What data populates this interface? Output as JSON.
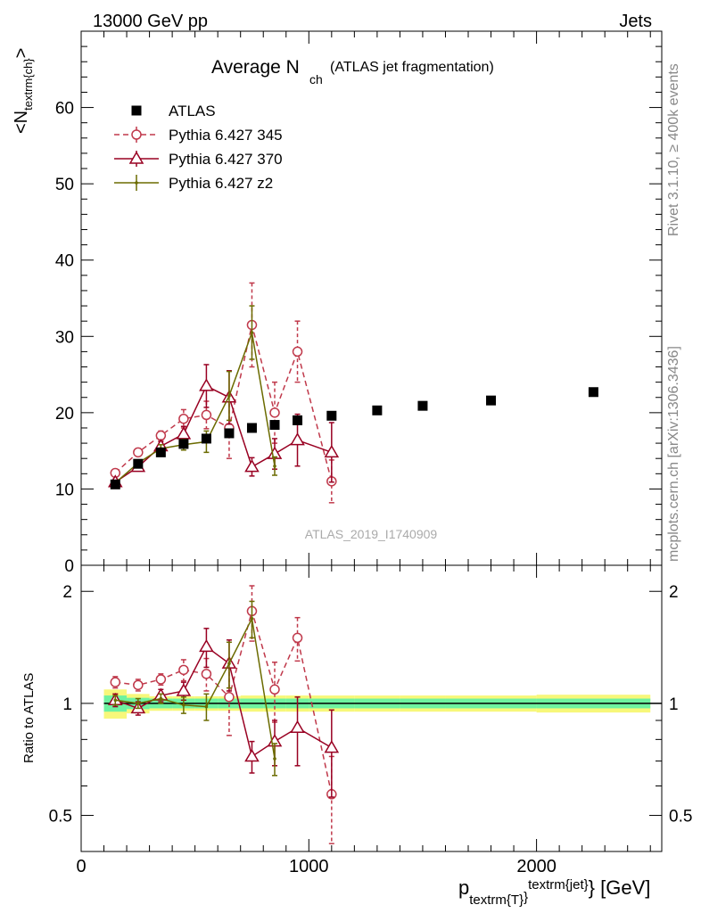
{
  "header": {
    "left": "13000 GeV pp",
    "right": "Jets"
  },
  "side_labels": {
    "rivet": "Rivet 3.1.10, ≥ 400k events",
    "mcplots": "mcplots.cern.ch [arXiv:1306.3436]"
  },
  "colors": {
    "atlas": "#000000",
    "p345": "#c0394b",
    "p370": "#990022",
    "pz2": "#6b6b00",
    "band_inner": "#6ef2a0",
    "band_outer": "#f7f77a"
  },
  "chart_data": [
    {
      "type": "scatter",
      "title_main": "Average N",
      "title_sub": "ch",
      "title_rest": "(ATLAS jet fragmentation)",
      "ylabel": "<N",
      "ylabel_sub": "textrm{ch}",
      "ylabel_end": ">",
      "watermark": "ATLAS_2019_I1740909",
      "xlim": [
        0,
        2550
      ],
      "ylim": [
        0,
        70
      ],
      "yticks": [
        0,
        10,
        20,
        30,
        40,
        50,
        60
      ],
      "legend_position": "top-left",
      "series": [
        {
          "name": "ATLAS",
          "style": "atlas",
          "x": [
            150,
            250,
            350,
            450,
            550,
            650,
            750,
            850,
            950,
            1100,
            1300,
            1500,
            1800,
            2250
          ],
          "y": [
            10.6,
            13.3,
            14.8,
            15.9,
            16.6,
            17.3,
            18.0,
            18.4,
            19.0,
            19.6,
            20.3,
            20.9,
            21.6,
            22.7
          ]
        },
        {
          "name": "Pythia 6.427 345",
          "style": "p345",
          "x": [
            150,
            250,
            350,
            450,
            550,
            650,
            750,
            850,
            950,
            1100
          ],
          "y": [
            12.1,
            14.8,
            17.0,
            19.2,
            19.7,
            18.0,
            31.5,
            20.0,
            28.0,
            11.0
          ],
          "err": [
            0.4,
            0.5,
            0.6,
            1.2,
            1.8,
            4.0,
            5.5,
            4.0,
            4.0,
            2.8
          ]
        },
        {
          "name": "Pythia 6.427 370",
          "style": "p370",
          "x": [
            150,
            250,
            350,
            450,
            550,
            650,
            750,
            850,
            950,
            1100
          ],
          "y": [
            10.9,
            12.9,
            15.6,
            17.2,
            23.5,
            22.0,
            12.9,
            14.6,
            16.4,
            14.8
          ],
          "err": [
            0.4,
            0.5,
            0.6,
            1.0,
            2.8,
            3.5,
            1.2,
            2.0,
            3.4,
            3.9
          ],
          "draw_to": 7
        },
        {
          "name": "Pythia 6.427 z2",
          "style": "pz2",
          "x": [
            150,
            250,
            350,
            450,
            550,
            650,
            750,
            850
          ],
          "y": [
            10.8,
            13.4,
            15.3,
            15.8,
            16.2,
            22.2,
            30.5,
            13.0
          ],
          "err": [
            0.3,
            0.4,
            0.5,
            0.7,
            1.4,
            3.2,
            3.5,
            1.2
          ]
        }
      ]
    },
    {
      "type": "scatter",
      "ylabel": "Ratio to ATLAS",
      "xlabel": "p",
      "xlabel_sub": "textrm{T}",
      "xlabel_brace": "}",
      "xlabel_sup": "textrm{jet}",
      "xlabel_end": "} [GeV]",
      "xlim": [
        0,
        2550
      ],
      "ylim": [
        0.4,
        2.35
      ],
      "yscale": "log",
      "yticks": [
        0.5,
        1,
        2
      ],
      "ytick_labels": [
        "0.5",
        "1",
        "2"
      ],
      "xticks": [
        0,
        1000,
        2000
      ],
      "xtick_labels": [
        "0",
        "1000",
        "2000"
      ],
      "band": {
        "x": [
          100,
          200,
          300,
          400,
          500,
          600,
          700,
          800,
          900,
          1000,
          1200,
          1400,
          1600,
          2000,
          2500
        ],
        "inner": [
          0.05,
          0.035,
          0.03,
          0.03,
          0.03,
          0.03,
          0.03,
          0.03,
          0.03,
          0.03,
          0.03,
          0.03,
          0.03,
          0.03
        ],
        "outer": [
          0.09,
          0.06,
          0.045,
          0.045,
          0.045,
          0.045,
          0.05,
          0.05,
          0.05,
          0.05,
          0.05,
          0.05,
          0.05,
          0.055
        ]
      },
      "series": [
        {
          "name": "Pythia 6.427 345",
          "style": "p345",
          "x": [
            150,
            250,
            350,
            450,
            550,
            650,
            750,
            850,
            950,
            1100
          ],
          "y": [
            1.14,
            1.12,
            1.16,
            1.23,
            1.2,
            1.04,
            1.77,
            1.09,
            1.5,
            0.57
          ],
          "err": [
            0.04,
            0.04,
            0.04,
            0.08,
            0.12,
            0.22,
            0.3,
            0.2,
            0.2,
            0.15
          ]
        },
        {
          "name": "Pythia 6.427 370",
          "style": "p370",
          "x": [
            150,
            250,
            350,
            450,
            550,
            650,
            750,
            850,
            950,
            1100
          ],
          "y": [
            1.02,
            0.97,
            1.05,
            1.08,
            1.42,
            1.28,
            0.72,
            0.79,
            0.86,
            0.76
          ],
          "err": [
            0.04,
            0.04,
            0.04,
            0.06,
            0.17,
            0.2,
            0.07,
            0.11,
            0.18,
            0.2
          ],
          "draw_to": 7
        },
        {
          "name": "Pythia 6.427 z2",
          "style": "pz2",
          "x": [
            150,
            250,
            350,
            450,
            550,
            650,
            750,
            850
          ],
          "y": [
            1.02,
            1.0,
            1.03,
            0.99,
            0.98,
            1.28,
            1.69,
            0.71
          ],
          "err": [
            0.03,
            0.03,
            0.03,
            0.05,
            0.08,
            0.18,
            0.19,
            0.07
          ]
        }
      ]
    }
  ]
}
